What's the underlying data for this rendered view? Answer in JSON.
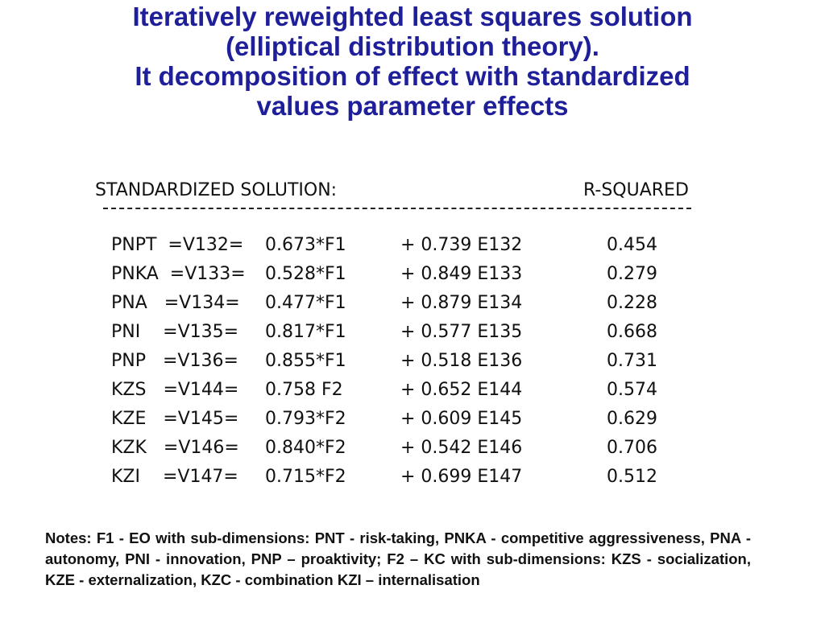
{
  "title_lines": [
    "Iteratively reweighted least squares solution",
    "(elliptical distribution theory).",
    "It decomposition of effect with standardized",
    "values parameter effects"
  ],
  "header": {
    "left": "STANDARDIZED SOLUTION:",
    "right": "R-SQUARED"
  },
  "rows": [
    {
      "variable": "PNPT  =V132=",
      "factor": "0.673*F1",
      "error": "+ 0.739 E132",
      "r_squared": "0.454"
    },
    {
      "variable": "PNKA  =V133=",
      "factor": "0.528*F1",
      "error": "+ 0.849 E133",
      "r_squared": "0.279"
    },
    {
      "variable": "PNA   =V134=",
      "factor": "0.477*F1",
      "error": "+ 0.879 E134",
      "r_squared": "0.228"
    },
    {
      "variable": "PNI    =V135=",
      "factor": "0.817*F1",
      "error": "+ 0.577 E135",
      "r_squared": "0.668"
    },
    {
      "variable": "PNP   =V136=",
      "factor": "0.855*F1",
      "error": "+ 0.518 E136",
      "r_squared": "0.731"
    },
    {
      "variable": "KZS   =V144=",
      "factor": "0.758 F2",
      "error": "+ 0.652 E144",
      "r_squared": "0.574"
    },
    {
      "variable": "KZE   =V145=",
      "factor": "0.793*F2",
      "error": "+ 0.609 E145",
      "r_squared": "0.629"
    },
    {
      "variable": "KZK   =V146=",
      "factor": "0.840*F2",
      "error": "+ 0.542 E146",
      "r_squared": "0.706"
    },
    {
      "variable": "KZI    =V147=",
      "factor": "0.715*F2",
      "error": "+ 0.699 E147",
      "r_squared": "0.512"
    }
  ],
  "notes": "Notes: F1 -  EO with sub-dimensions: PNT - risk-taking, PNKA - competitive aggressiveness, PNA - autonomy, PNI - innovation, PNP – proaktivity; F2 – KC with sub-dimensions: KZS - socialization, KZE - externalization, KZC - combination KZI – internalisation",
  "colors": {
    "title": "#1f1f9a",
    "text": "#111111"
  }
}
